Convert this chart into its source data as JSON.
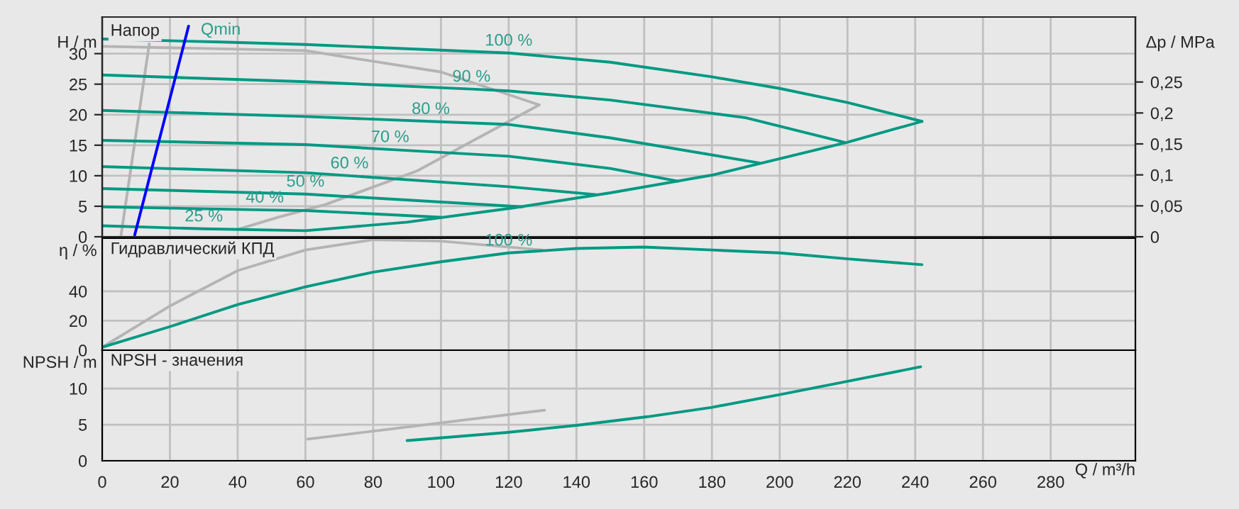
{
  "chart_data": [
    {
      "type": "line",
      "title": "Напор",
      "ylabel": "H / m",
      "y2label": "Δp / MPa",
      "xlim": [
        0,
        305
      ],
      "ylim": [
        0,
        36
      ],
      "xticks": [
        0,
        20,
        40,
        60,
        80,
        100,
        120,
        140,
        160,
        180,
        200,
        220,
        240,
        260,
        280
      ],
      "yticks": [
        0,
        5,
        10,
        15,
        20,
        25,
        30
      ],
      "y2lim": [
        0,
        0.355
      ],
      "y2ticks": [
        0,
        {
          "value": 0.05,
          "label": "0,05"
        },
        {
          "value": 0.1,
          "label": "0,1"
        },
        {
          "value": 0.15,
          "label": "0,15"
        },
        {
          "value": 0.2,
          "label": "0,2"
        },
        {
          "value": 0.25,
          "label": "0,25"
        }
      ],
      "grid": true,
      "tick_labels": "y",
      "series": [
        {
          "color": "#b4b4b4",
          "x": [
            0,
            60,
            100,
            129
          ],
          "values": [
            31.2,
            30.5,
            27,
            21.6
          ]
        },
        {
          "color": "#b4b4b4",
          "x": [
            129,
            93,
            66,
            52,
            40
          ],
          "values": [
            21.6,
            10.8,
            5.3,
            3.2,
            1.2
          ]
        },
        {
          "color": "#b4b4b4",
          "x": [
            5.5,
            13.9
          ],
          "values": [
            0,
            31.6
          ]
        },
        {
          "color": "#009982",
          "x": [
            0,
            35,
            60,
            120,
            150,
            180,
            200,
            220,
            242
          ],
          "values": [
            32.4,
            31.9,
            31.5,
            30.1,
            28.6,
            26.2,
            24.3,
            22.0,
            18.9
          ]
        },
        {
          "color": "#009982",
          "x": [
            0,
            60,
            109,
            120,
            150,
            190,
            219
          ],
          "values": [
            26.5,
            25.4,
            24.2,
            23.9,
            22.4,
            19.5,
            15.5
          ]
        },
        {
          "color": "#009982",
          "x": [
            0,
            60,
            97,
            120,
            150,
            194
          ],
          "values": [
            20.7,
            19.7,
            18.9,
            18.4,
            16.2,
            12.1
          ]
        },
        {
          "color": "#009982",
          "x": [
            0,
            60,
            85,
            120,
            150,
            170
          ],
          "values": [
            15.8,
            15.1,
            14.3,
            13.2,
            11.2,
            9.1
          ]
        },
        {
          "color": "#009982",
          "x": [
            0,
            60,
            73,
            120,
            146
          ],
          "values": [
            11.5,
            10.5,
            10.0,
            8.2,
            6.9
          ]
        },
        {
          "color": "#009982",
          "x": [
            0,
            60,
            124
          ],
          "values": [
            7.9,
            7.0,
            4.9
          ]
        },
        {
          "color": "#009982",
          "x": [
            0,
            48,
            60,
            100
          ],
          "values": [
            4.9,
            4.4,
            4.3,
            3.2
          ]
        },
        {
          "color": "#009982",
          "x": [
            0,
            30,
            60,
            90,
            121,
            150,
            180,
            200,
            220,
            242
          ],
          "values": [
            1.8,
            1.3,
            1.0,
            2.4,
            4.7,
            7.2,
            10.1,
            12.8,
            15.5,
            18.9
          ]
        },
        {
          "color": "#0000ff",
          "x": [
            9.6,
            25.5
          ],
          "values": [
            0.3,
            34.5
          ]
        }
      ],
      "annotations": [
        {
          "text": "Qmin",
          "x": 35,
          "y": 31.9
        },
        {
          "text": "100 %",
          "x": 120,
          "y": 30.1
        },
        {
          "text": "90 %",
          "x": 109,
          "y": 24.2
        },
        {
          "text": "80 %",
          "x": 97,
          "y": 18.9
        },
        {
          "text": "70 %",
          "x": 85,
          "y": 14.3
        },
        {
          "text": "60 %",
          "x": 73,
          "y": 10.0
        },
        {
          "text": "50 %",
          "x": 60,
          "y": 7.0
        },
        {
          "text": "40 %",
          "x": 48,
          "y": 4.4
        },
        {
          "text": "25 %",
          "x": 30,
          "y": 1.3
        }
      ]
    },
    {
      "type": "line",
      "title": "Гидравлический КПД",
      "ylabel": "η / %",
      "xlim": [
        0,
        305
      ],
      "ylim": [
        0,
        76
      ],
      "xticks": [
        0,
        20,
        40,
        60,
        80,
        100,
        120,
        140,
        160,
        180,
        200,
        220,
        240,
        260,
        280
      ],
      "yticks": [
        0,
        20,
        40
      ],
      "grid": true,
      "tick_labels": "y",
      "series": [
        {
          "color": "#b4b4b4",
          "x": [
            0,
            20,
            40,
            60,
            80,
            100,
            130
          ],
          "values": [
            2,
            30,
            54,
            68,
            75,
            74,
            68
          ]
        },
        {
          "color": "#009982",
          "x": [
            0,
            20,
            40,
            60,
            80,
            100,
            120,
            140,
            160,
            180,
            200,
            220,
            242
          ],
          "values": [
            2,
            16,
            31,
            43,
            53,
            60,
            66,
            69,
            70,
            68,
            66,
            62,
            58
          ]
        }
      ],
      "annotations": [
        {
          "text": "100 %",
          "x": 120,
          "y": 66
        }
      ]
    },
    {
      "type": "line",
      "title": "NPSH - значения",
      "ylabel": "NPSH / m",
      "xlabel": "Q / m³/h",
      "xlim": [
        0,
        305
      ],
      "ylim": [
        0,
        15.3
      ],
      "xticks": [
        0,
        20,
        40,
        60,
        80,
        100,
        120,
        140,
        160,
        180,
        200,
        220,
        240,
        260,
        280
      ],
      "yticks": [
        0,
        5,
        10
      ],
      "grid": true,
      "series": [
        {
          "color": "#b4b4b4",
          "x": [
            60.7,
            130.6
          ],
          "values": [
            3.0,
            7.0
          ]
        },
        {
          "color": "#009982",
          "x": [
            90,
            119,
            140,
            161,
            180,
            200.6,
            220,
            241.6
          ],
          "values": [
            2.8,
            3.9,
            4.9,
            6.1,
            7.4,
            9.2,
            11.0,
            13.0
          ]
        }
      ]
    }
  ]
}
